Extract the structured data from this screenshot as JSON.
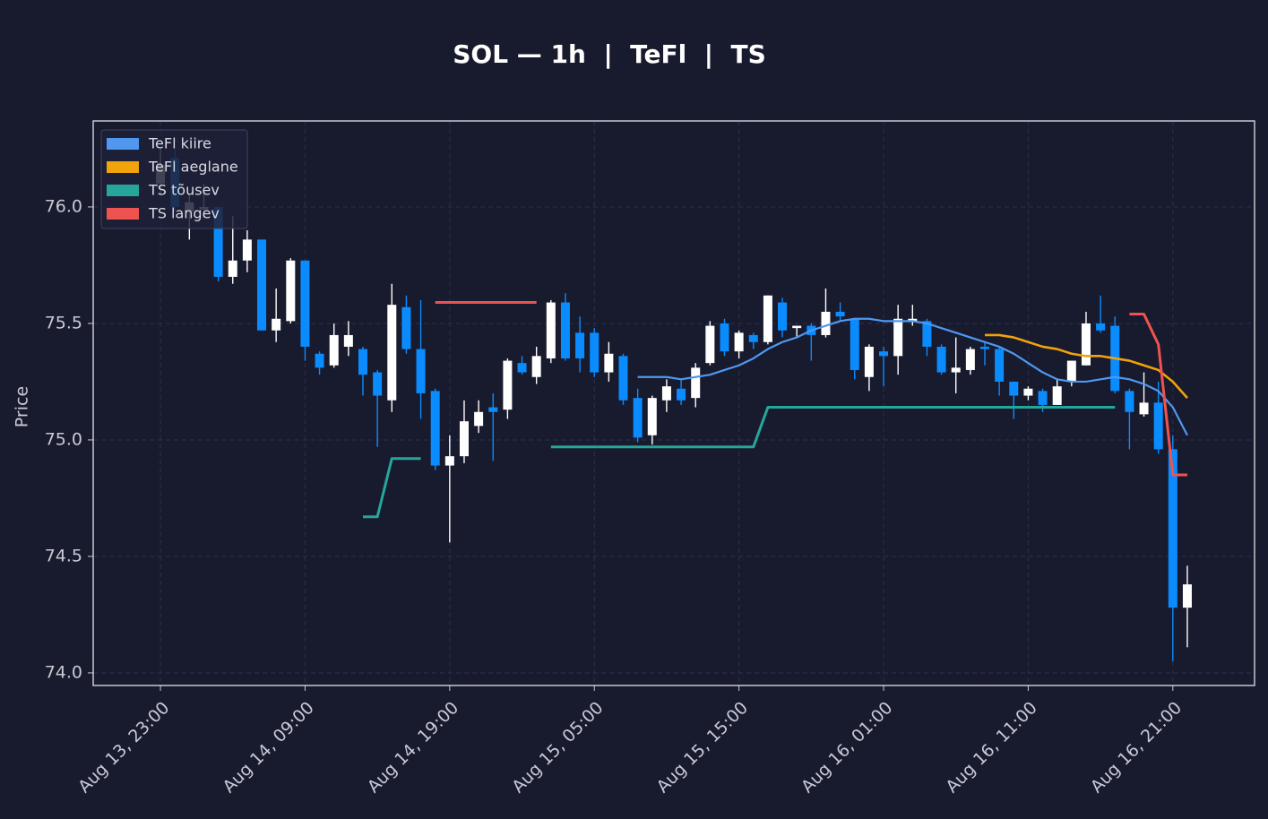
{
  "chart_data": {
    "type": "candlestick",
    "title": "SOL — 1h  |  TeFl  |  TS",
    "ylabel": "Price",
    "categories": [
      "Aug 13, 23:00",
      null,
      null,
      null,
      null,
      null,
      null,
      null,
      null,
      null,
      "Aug 14, 09:00",
      null,
      null,
      null,
      null,
      null,
      null,
      null,
      null,
      null,
      "Aug 14, 19:00",
      null,
      null,
      null,
      null,
      null,
      null,
      null,
      null,
      null,
      "Aug 15, 05:00",
      null,
      null,
      null,
      null,
      null,
      null,
      null,
      null,
      null,
      "Aug 15, 15:00",
      null,
      null,
      null,
      null,
      null,
      null,
      null,
      null,
      null,
      "Aug 16, 01:00",
      null,
      null,
      null,
      null,
      null,
      null,
      null,
      null,
      null,
      "Aug 16, 11:00",
      null,
      null,
      null,
      null,
      null,
      null,
      null,
      null,
      null,
      "Aug 16, 21:00",
      null
    ],
    "open": [
      76.1,
      76.21,
      75.98,
      75.99,
      76.0,
      75.7,
      75.77,
      75.86,
      75.47,
      75.51,
      75.77,
      75.37,
      75.32,
      75.4,
      75.39,
      75.29,
      75.17,
      75.57,
      75.39,
      75.21,
      74.89,
      74.93,
      75.06,
      75.14,
      75.13,
      75.33,
      75.27,
      75.35,
      75.59,
      75.46,
      75.46,
      75.29,
      75.36,
      75.18,
      75.02,
      75.17,
      75.22,
      75.18,
      75.33,
      75.5,
      75.38,
      75.45,
      75.42,
      75.59,
      75.48,
      75.49,
      75.45,
      75.55,
      75.52,
      75.27,
      75.38,
      75.36,
      75.51,
      75.51,
      75.4,
      75.29,
      75.3,
      75.4,
      75.39,
      75.25,
      75.19,
      75.21,
      75.15,
      75.25,
      75.32,
      75.5,
      75.49,
      75.21,
      75.11,
      75.16,
      74.96,
      74.28
    ],
    "high": [
      76.25,
      76.25,
      76.05,
      76.1,
      76.0,
      75.96,
      75.9,
      75.86,
      75.65,
      75.78,
      75.77,
      75.38,
      75.5,
      75.51,
      75.4,
      75.3,
      75.67,
      75.62,
      75.6,
      75.22,
      75.02,
      75.17,
      75.17,
      75.2,
      75.35,
      75.36,
      75.4,
      75.6,
      75.63,
      75.53,
      75.48,
      75.42,
      75.37,
      75.22,
      75.19,
      75.26,
      75.26,
      75.33,
      75.51,
      75.52,
      75.47,
      75.46,
      75.62,
      75.61,
      75.49,
      75.5,
      75.65,
      75.59,
      75.52,
      75.41,
      75.4,
      75.58,
      75.58,
      75.52,
      75.41,
      75.44,
      75.4,
      75.42,
      75.4,
      75.25,
      75.23,
      75.22,
      75.26,
      75.34,
      75.55,
      75.62,
      75.53,
      75.22,
      75.29,
      75.25,
      75.02,
      74.46
    ],
    "low": [
      76.05,
      75.98,
      75.86,
      75.95,
      75.68,
      75.67,
      75.72,
      75.47,
      75.42,
      75.5,
      75.34,
      75.28,
      75.31,
      75.36,
      75.19,
      74.97,
      75.12,
      75.37,
      75.09,
      74.87,
      74.56,
      74.9,
      75.03,
      74.91,
      75.09,
      75.28,
      75.24,
      75.33,
      75.34,
      75.29,
      75.27,
      75.25,
      75.15,
      74.99,
      74.98,
      75.12,
      75.15,
      75.14,
      75.32,
      75.36,
      75.35,
      75.39,
      75.41,
      75.44,
      75.44,
      75.34,
      75.44,
      75.51,
      75.26,
      75.21,
      75.23,
      75.28,
      75.49,
      75.36,
      75.28,
      75.2,
      75.28,
      75.32,
      75.19,
      75.09,
      75.17,
      75.12,
      75.15,
      75.23,
      75.32,
      75.46,
      75.2,
      74.96,
      75.1,
      74.94,
      74.05,
      74.11
    ],
    "close": [
      76.18,
      76.0,
      76.02,
      76.0,
      75.7,
      75.77,
      75.86,
      75.47,
      75.52,
      75.77,
      75.4,
      75.31,
      75.45,
      75.45,
      75.28,
      75.19,
      75.58,
      75.39,
      75.2,
      74.89,
      74.93,
      75.08,
      75.12,
      75.12,
      75.34,
      75.29,
      75.36,
      75.59,
      75.35,
      75.35,
      75.29,
      75.37,
      75.17,
      75.01,
      75.18,
      75.23,
      75.17,
      75.31,
      75.49,
      75.38,
      75.46,
      75.42,
      75.62,
      75.47,
      75.49,
      75.45,
      75.55,
      75.53,
      75.3,
      75.4,
      75.36,
      75.52,
      75.52,
      75.4,
      75.29,
      75.31,
      75.39,
      75.39,
      75.25,
      75.19,
      75.22,
      75.15,
      75.23,
      75.34,
      75.5,
      75.47,
      75.21,
      75.12,
      75.16,
      74.96,
      74.28,
      74.38
    ],
    "up_color": "#ffffff",
    "down_color": "#0a8cff",
    "overlays": [
      {
        "name": "TeFl kiire",
        "color": "#4f98f0",
        "width": 2.2,
        "values": [
          null,
          null,
          null,
          null,
          null,
          null,
          null,
          null,
          null,
          null,
          null,
          null,
          null,
          null,
          null,
          null,
          null,
          null,
          null,
          null,
          null,
          null,
          null,
          null,
          null,
          null,
          null,
          null,
          null,
          null,
          null,
          null,
          null,
          75.27,
          75.27,
          75.27,
          75.26,
          75.27,
          75.28,
          75.3,
          75.32,
          75.35,
          75.39,
          75.42,
          75.44,
          75.47,
          75.49,
          75.51,
          75.52,
          75.52,
          75.51,
          75.51,
          75.51,
          75.5,
          75.48,
          75.46,
          75.44,
          75.42,
          75.4,
          75.37,
          75.33,
          75.29,
          75.26,
          75.25,
          75.25,
          75.26,
          75.27,
          75.26,
          75.24,
          75.21,
          75.14,
          75.02
        ]
      },
      {
        "name": "TeFl aeglane",
        "color": "#f0a30a",
        "width": 2.6,
        "values": [
          null,
          null,
          null,
          null,
          null,
          null,
          null,
          null,
          null,
          null,
          null,
          null,
          null,
          null,
          null,
          null,
          null,
          null,
          null,
          null,
          null,
          null,
          null,
          null,
          null,
          null,
          null,
          null,
          null,
          null,
          null,
          null,
          null,
          null,
          null,
          null,
          null,
          null,
          null,
          null,
          null,
          null,
          null,
          null,
          null,
          null,
          null,
          null,
          null,
          null,
          null,
          null,
          null,
          null,
          null,
          null,
          null,
          75.45,
          75.45,
          75.44,
          75.42,
          75.4,
          75.39,
          75.37,
          75.36,
          75.36,
          75.35,
          75.34,
          75.32,
          75.3,
          75.25,
          75.18
        ]
      },
      {
        "name": "TS tõusev",
        "color": "#26a69a",
        "width": 3,
        "values": [
          null,
          null,
          null,
          null,
          null,
          null,
          null,
          null,
          null,
          null,
          null,
          null,
          null,
          null,
          74.67,
          74.67,
          74.92,
          74.92,
          74.92,
          null,
          null,
          null,
          null,
          null,
          null,
          null,
          null,
          74.97,
          74.97,
          74.97,
          74.97,
          74.97,
          74.97,
          74.97,
          74.97,
          74.97,
          74.97,
          74.97,
          74.97,
          74.97,
          74.97,
          74.97,
          75.14,
          75.14,
          75.14,
          75.14,
          75.14,
          75.14,
          75.14,
          75.14,
          75.14,
          75.14,
          75.14,
          75.14,
          75.14,
          75.14,
          75.14,
          75.14,
          75.14,
          75.14,
          75.14,
          75.14,
          75.14,
          75.14,
          75.14,
          75.14,
          75.14,
          null,
          null,
          null,
          null,
          null
        ]
      },
      {
        "name": "TS langev",
        "color": "#ef5350",
        "width": 3,
        "values": [
          null,
          null,
          null,
          null,
          null,
          null,
          null,
          null,
          null,
          null,
          null,
          null,
          null,
          null,
          null,
          null,
          null,
          null,
          null,
          75.59,
          75.59,
          75.59,
          75.59,
          75.59,
          75.59,
          75.59,
          75.59,
          null,
          null,
          null,
          null,
          null,
          null,
          null,
          null,
          null,
          null,
          null,
          null,
          null,
          null,
          null,
          null,
          null,
          null,
          null,
          null,
          null,
          null,
          null,
          null,
          null,
          null,
          null,
          null,
          null,
          null,
          null,
          null,
          null,
          null,
          null,
          null,
          null,
          null,
          null,
          null,
          75.54,
          75.54,
          75.41,
          74.85,
          74.85
        ]
      }
    ],
    "ylim": [
      73.946,
      76.369
    ],
    "yticks": [
      {
        "value": 74,
        "label": "74.0"
      },
      {
        "value": 74.5,
        "label": "74.5"
      },
      {
        "value": 75,
        "label": "75.0"
      },
      {
        "value": 75.5,
        "label": "75.5"
      },
      {
        "value": 76,
        "label": "76.0"
      }
    ],
    "grid": true,
    "legend": "upper left"
  }
}
